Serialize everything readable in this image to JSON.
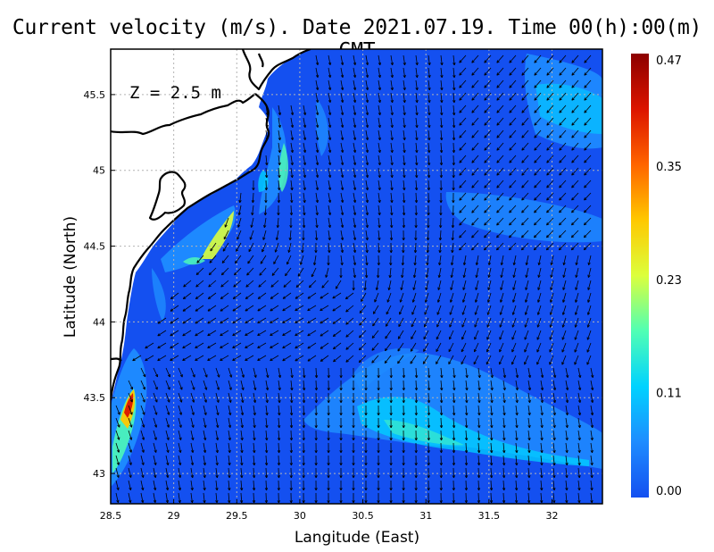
{
  "title": "Current velocity (m/s). Date 2021.07.19. Time 00(h):00(m) GMT",
  "depth_label": "Z = 2.5 m",
  "x_axis": {
    "label": "Langitude (East)",
    "range": [
      28.5,
      32.4
    ],
    "ticks": [
      "28.5",
      "29",
      "29.5",
      "30",
      "30.5",
      "31",
      "31.5",
      "32"
    ]
  },
  "y_axis": {
    "label": "Latitude (North)",
    "range": [
      42.8,
      45.8
    ],
    "ticks": [
      "43",
      "43.5",
      "44",
      "44.5",
      "45",
      "45.5"
    ]
  },
  "colorbar": {
    "ticks": [
      "0.47",
      "0.35",
      "0.23",
      "0.11",
      "0.00"
    ],
    "min": 0.0,
    "max": 0.47,
    "colors": [
      "#1450f0",
      "#1e8cff",
      "#00d2ff",
      "#50ffb4",
      "#dcff3c",
      "#ffc800",
      "#ff6400",
      "#dc1400",
      "#8c0000"
    ]
  },
  "colors": {
    "land": "#ffffff",
    "coastline": "#000000",
    "grid": "#b4b4b4",
    "arrows": "#000000"
  },
  "grid_lines": true
}
